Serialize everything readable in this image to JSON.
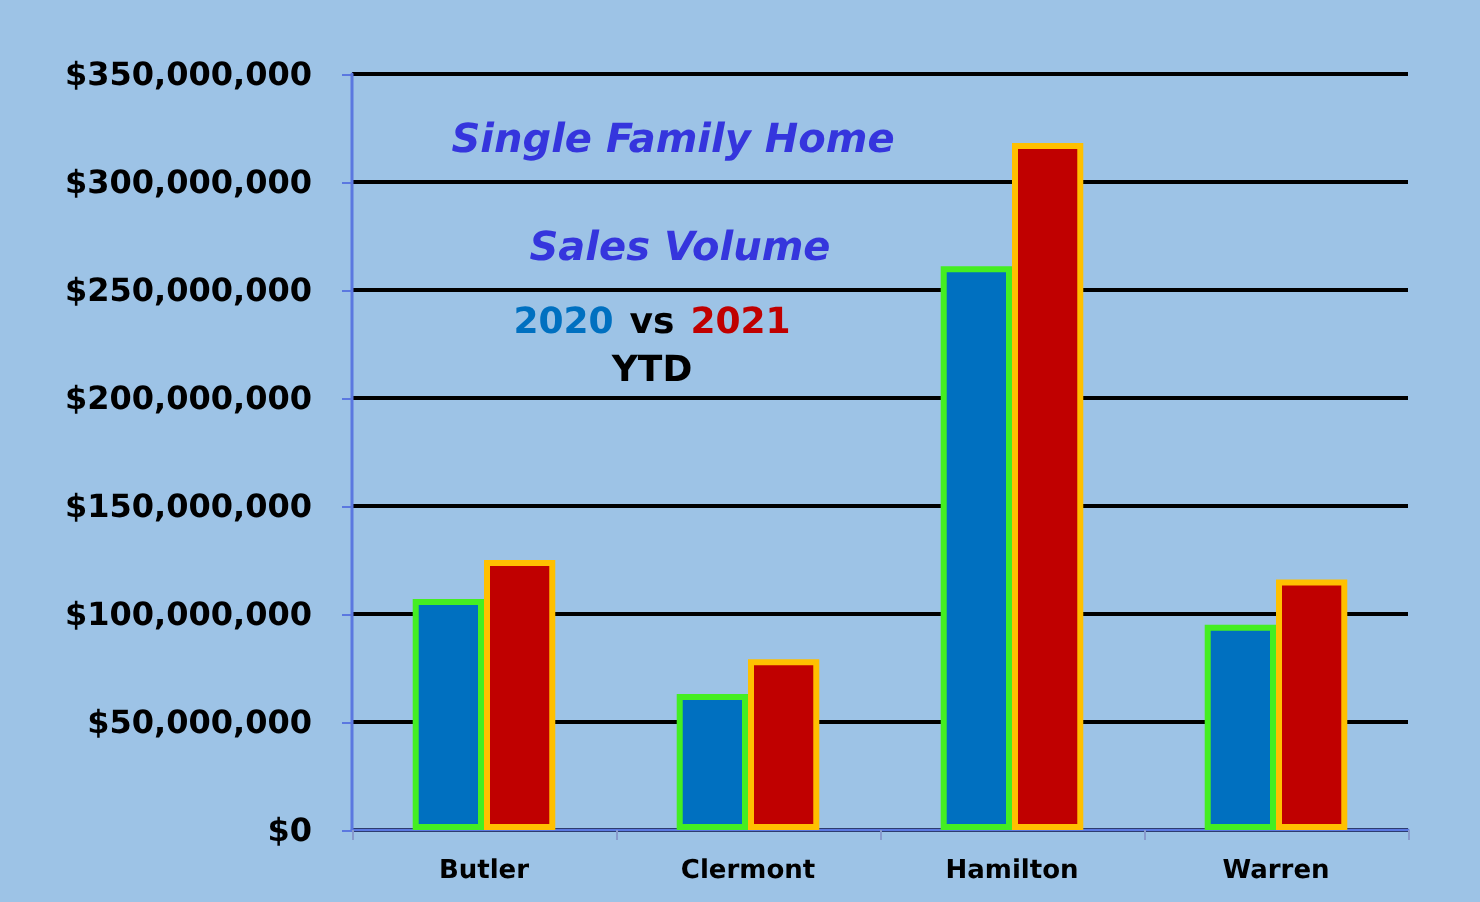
{
  "chart_data": {
    "type": "bar",
    "title": "Single Family Home Sales Volume",
    "categories": [
      "Butler",
      "Clermont",
      "Hamilton",
      "Warren"
    ],
    "series": [
      {
        "name": "2020",
        "color": "#0070c0",
        "values": [
          107000000,
          63000000,
          261000000,
          95000000
        ]
      },
      {
        "name": "2021",
        "color": "#c00000",
        "values": [
          125000000,
          79000000,
          318000000,
          116000000
        ]
      }
    ],
    "annotations": [
      "vs",
      "YTD"
    ],
    "ylim": [
      0,
      350000000
    ],
    "yticks": [
      {
        "value": 0,
        "label": "$0"
      },
      {
        "value": 50000000,
        "label": "$50,000,000"
      },
      {
        "value": 100000000,
        "label": "$100,000,000"
      },
      {
        "value": 150000000,
        "label": "$150,000,000"
      },
      {
        "value": 200000000,
        "label": "$200,000,000"
      },
      {
        "value": 250000000,
        "label": "$250,000,000"
      },
      {
        "value": 300000000,
        "label": "$300,000,000"
      },
      {
        "value": 350000000,
        "label": "$350,000,000"
      }
    ],
    "grid": "y",
    "legend": "top left"
  }
}
